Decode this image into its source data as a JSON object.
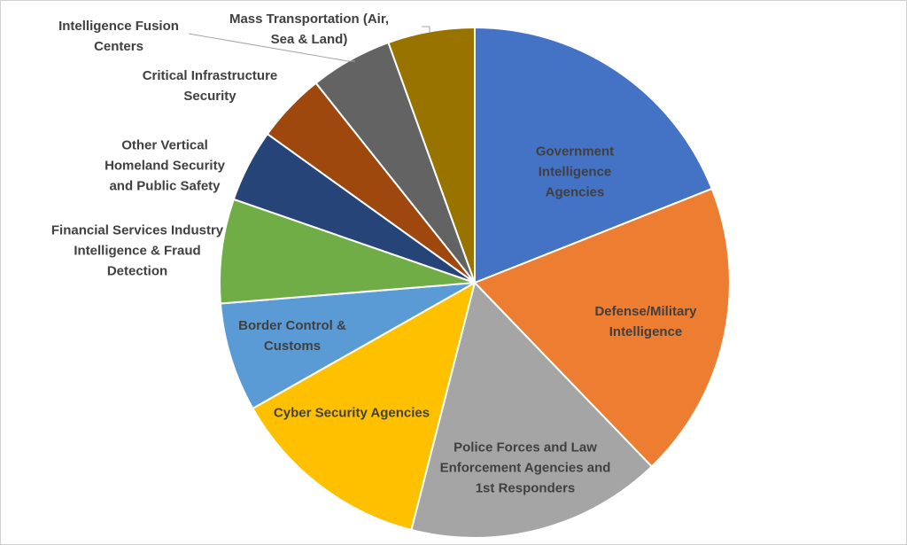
{
  "chart_data": {
    "type": "pie",
    "categories": [
      "Government Intelligence Agencies",
      "Defense/Military Intelligence",
      "Police Forces and Law Enforcement Agencies and 1st Responders",
      "Cyber Security Agencies",
      "Border Control & Customs",
      "Financial Services Industry Intelligence & Fraud Detection",
      "Other Vertical Homeland Security and Public Safety",
      "Critical Infrastructure Security",
      "Intelligence Fusion Centers",
      "Mass Transportation (Air, Sea & Land)"
    ],
    "values": [
      19,
      18.8,
      16.2,
      12.8,
      6.9,
      6.6,
      4.6,
      4.4,
      5.2,
      5.5
    ],
    "colors": [
      "#4472c4",
      "#ed7d31",
      "#a5a5a5",
      "#ffc000",
      "#5b9bd5",
      "#70ad47",
      "#264478",
      "#9e480e",
      "#636363",
      "#997300"
    ]
  }
}
